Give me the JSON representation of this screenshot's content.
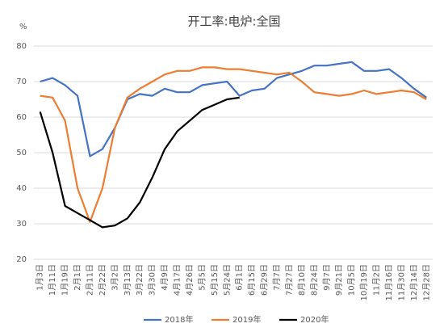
{
  "chart_data": {
    "type": "line",
    "title": "开工率:电炉:全国",
    "y_label": "%",
    "categories": [
      "1月3日",
      "1月11日",
      "1月19日",
      "2月1日",
      "2月11日",
      "2月22日",
      "3月2日",
      "3月13日",
      "3月22日",
      "3月30日",
      "4月9日",
      "4月17日",
      "4月26日",
      "5月5日",
      "5月15日",
      "5月24日",
      "6月1日",
      "6月15日",
      "6月29日",
      "7月7日",
      "7月27日",
      "8月10日",
      "8月24日",
      "9月7日",
      "9月21日",
      "10月5日",
      "10月19日",
      "11月2日",
      "11月16日",
      "11月30日",
      "12月14日",
      "12月28日"
    ],
    "series": [
      {
        "name": "2018年",
        "color": "#4472c4",
        "values": [
          70,
          71,
          69,
          66,
          49,
          51,
          57,
          65,
          66.5,
          66,
          68,
          67,
          67,
          69,
          69.5,
          70,
          66,
          67.5,
          68,
          71,
          72,
          73,
          74.5,
          74.5,
          75,
          75.5,
          73,
          73,
          73.5,
          71,
          68,
          65.5
        ]
      },
      {
        "name": "2019年",
        "color": "#ed7d31",
        "values": [
          66,
          65.5,
          59,
          40,
          30.5,
          40,
          57,
          65.5,
          68,
          70,
          72,
          73,
          73,
          74,
          74,
          73.5,
          73.5,
          73,
          72.5,
          72,
          72.5,
          70,
          67,
          66.5,
          66,
          66.5,
          67.5,
          66.5,
          67,
          67.5,
          67,
          65
        ]
      },
      {
        "name": "2020年",
        "color": "#000000",
        "values": [
          61.5,
          50,
          35,
          33,
          31,
          29,
          29.5,
          31.5,
          36,
          43,
          51,
          56,
          59,
          62,
          63.5,
          65,
          65.5,
          null,
          null,
          null,
          null,
          null,
          null,
          null,
          null,
          null,
          null,
          null,
          null,
          null,
          null,
          null
        ]
      }
    ],
    "ylim": [
      20,
      80
    ],
    "yticks": [
      20,
      30,
      40,
      50,
      60,
      70,
      80
    ],
    "grid": true,
    "legend": "bottom"
  }
}
